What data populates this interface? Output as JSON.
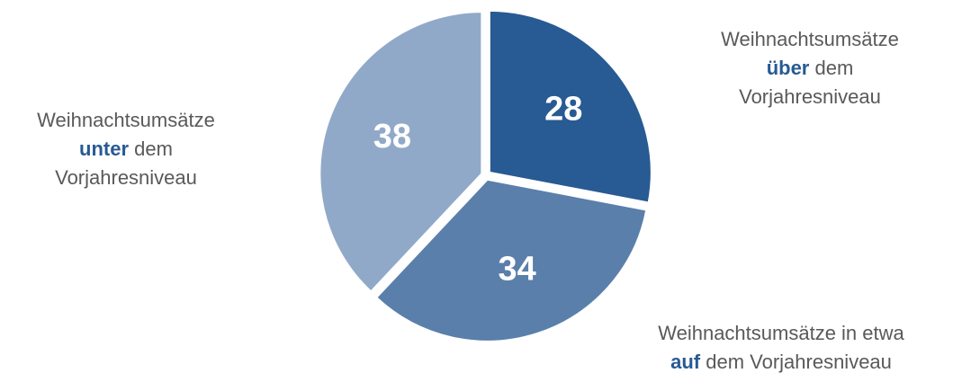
{
  "chart_data": {
    "type": "pie",
    "categories": [
      [
        "Weihnachtsumsätze",
        "über",
        "dem",
        "Vorjahresniveau"
      ],
      [
        "Weihnachtsumsätze in etwa",
        "auf",
        "dem Vorjahresniveau"
      ],
      [
        "Weihnachtsumsätze",
        "unter",
        "dem",
        "Vorjahresniveau"
      ]
    ],
    "values": [
      28,
      34,
      38
    ],
    "colors": [
      "#285a93",
      "#5a7fab",
      "#91a9c8"
    ]
  }
}
